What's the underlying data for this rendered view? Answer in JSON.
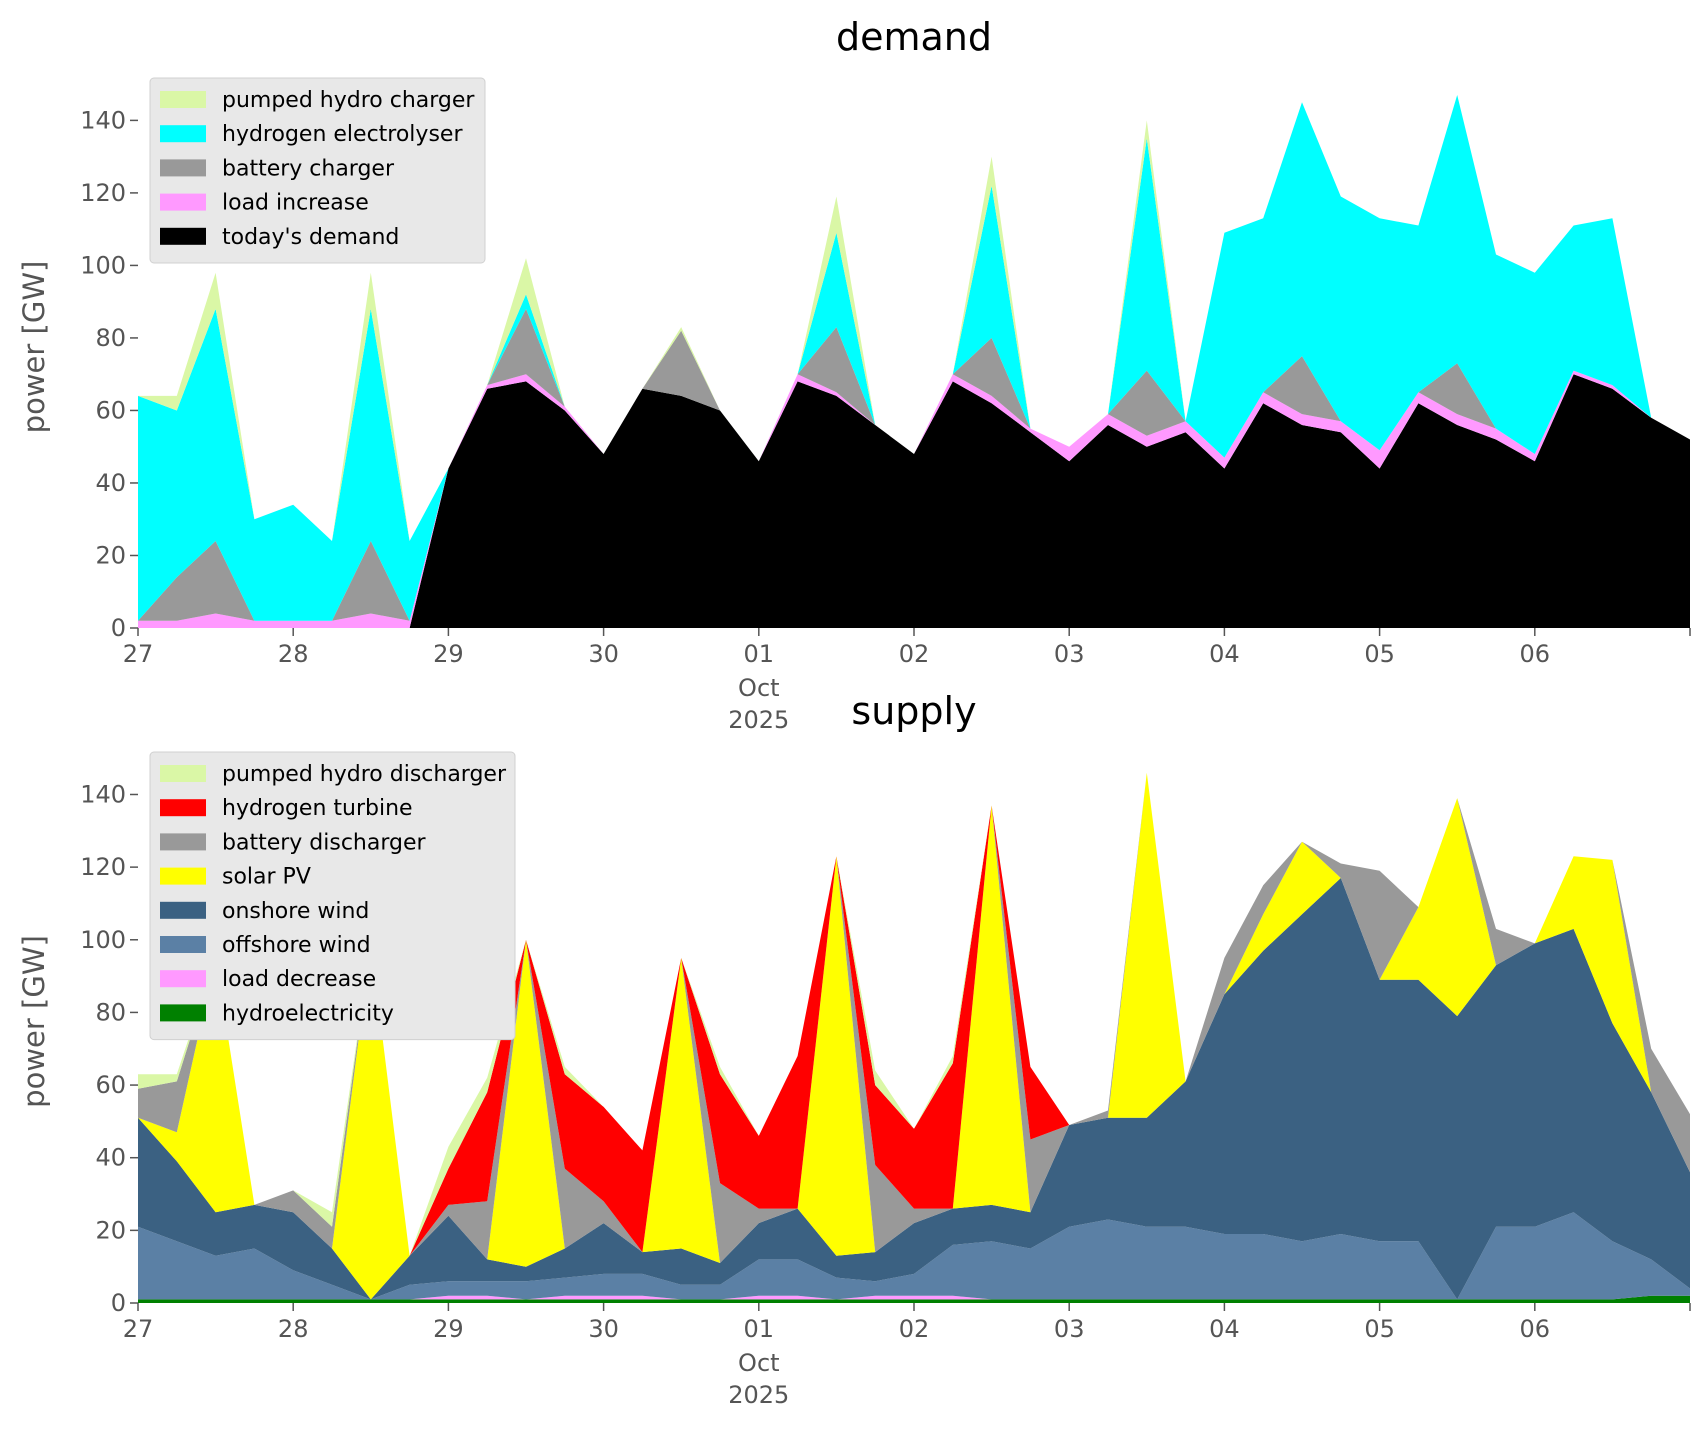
{
  "chart_data": [
    {
      "type": "area",
      "stacked": true,
      "title": "demand",
      "ylabel": "power [GW]",
      "xlabel": "",
      "ylim": [
        0,
        155
      ],
      "xlim": [
        "2025-09-27T00:00",
        "2025-10-07T00:00"
      ],
      "y_ticks": [
        0,
        20,
        40,
        60,
        80,
        100,
        120,
        140
      ],
      "x_ticks": [
        {
          "t": "2025-09-27T00:00",
          "label": "27"
        },
        {
          "t": "2025-09-28T00:00",
          "label": "28"
        },
        {
          "t": "2025-09-29T00:00",
          "label": "29"
        },
        {
          "t": "2025-09-30T00:00",
          "label": "30"
        },
        {
          "t": "2025-10-01T00:00",
          "label": "01",
          "sub": [
            "Oct",
            "2025"
          ]
        },
        {
          "t": "2025-10-02T00:00",
          "label": "02"
        },
        {
          "t": "2025-10-03T00:00",
          "label": "03"
        },
        {
          "t": "2025-10-04T00:00",
          "label": "04"
        },
        {
          "t": "2025-10-05T00:00",
          "label": "05"
        },
        {
          "t": "2025-10-06T00:00",
          "label": "06"
        }
      ],
      "grid": false,
      "legend_position": "upper left",
      "x": [
        "2025-09-27T00:00",
        "2025-09-27T06:00",
        "2025-09-27T12:00",
        "2025-09-27T18:00",
        "2025-09-28T00:00",
        "2025-09-28T06:00",
        "2025-09-28T12:00",
        "2025-09-28T18:00",
        "2025-09-29T00:00",
        "2025-09-29T06:00",
        "2025-09-29T12:00",
        "2025-09-29T18:00",
        "2025-09-30T00:00",
        "2025-09-30T06:00",
        "2025-09-30T12:00",
        "2025-09-30T18:00",
        "2025-10-01T00:00",
        "2025-10-01T06:00",
        "2025-10-01T12:00",
        "2025-10-01T18:00",
        "2025-10-02T00:00",
        "2025-10-02T06:00",
        "2025-10-02T12:00",
        "2025-10-02T18:00",
        "2025-10-03T00:00",
        "2025-10-03T06:00",
        "2025-10-03T12:00",
        "2025-10-03T18:00",
        "2025-10-04T00:00",
        "2025-10-04T06:00",
        "2025-10-04T12:00",
        "2025-10-04T18:00",
        "2025-10-05T00:00",
        "2025-10-05T06:00",
        "2025-10-05T12:00",
        "2025-10-05T18:00",
        "2025-10-06T00:00",
        "2025-10-06T06:00",
        "2025-10-06T12:00",
        "2025-10-06T18:00",
        "2025-10-07T00:00"
      ],
      "series": [
        {
          "name": "today's demand",
          "color": "#000000",
          "values": [
            0,
            0,
            0,
            0,
            0,
            0,
            0,
            0,
            44,
            66,
            68,
            60,
            48,
            66,
            64,
            60,
            46,
            68,
            64,
            56,
            48,
            68,
            62,
            54,
            46,
            56,
            50,
            54,
            44,
            62,
            56,
            54,
            44,
            62,
            56,
            52,
            46,
            70,
            66,
            58,
            52
          ]
        },
        {
          "name": "load increase",
          "color": "#ff99ff",
          "values": [
            2,
            2,
            4,
            2,
            2,
            2,
            4,
            2,
            0,
            1,
            2,
            1,
            0,
            0,
            0,
            0,
            0,
            2,
            1,
            0,
            0,
            2,
            2,
            1,
            4,
            3,
            3,
            3,
            3,
            3,
            3,
            3,
            5,
            3,
            3,
            3,
            2,
            1,
            1,
            0,
            0
          ]
        },
        {
          "name": "battery charger",
          "color": "#999999",
          "values": [
            0,
            12,
            20,
            0,
            0,
            0,
            20,
            0,
            0,
            0,
            18,
            0,
            0,
            0,
            18,
            0,
            0,
            0,
            18,
            0,
            0,
            0,
            16,
            0,
            0,
            0,
            18,
            0,
            0,
            0,
            16,
            0,
            0,
            0,
            14,
            0,
            0,
            0,
            0,
            0,
            0
          ]
        },
        {
          "name": "hydrogen electrolyser",
          "color": "#00ffff",
          "values": [
            62,
            46,
            64,
            28,
            32,
            22,
            64,
            22,
            0,
            0,
            4,
            0,
            0,
            0,
            0,
            0,
            0,
            0,
            26,
            0,
            0,
            0,
            42,
            0,
            0,
            0,
            64,
            0,
            62,
            48,
            70,
            62,
            64,
            46,
            74,
            48,
            50,
            40,
            46,
            0,
            0
          ]
        },
        {
          "name": "pumped hydro charger",
          "color": "#daf7a6",
          "values": [
            0,
            4,
            10,
            0,
            0,
            0,
            10,
            0,
            0,
            0,
            10,
            0,
            0,
            0,
            1,
            0,
            0,
            0,
            10,
            0,
            0,
            0,
            8,
            0,
            0,
            0,
            5,
            0,
            0,
            0,
            0,
            0,
            0,
            0,
            0,
            0,
            0,
            0,
            0,
            0,
            0
          ]
        }
      ]
    },
    {
      "type": "area",
      "stacked": true,
      "title": "supply",
      "ylabel": "power [GW]",
      "xlabel": "",
      "ylim": [
        0,
        155
      ],
      "xlim": [
        "2025-09-27T00:00",
        "2025-10-07T00:00"
      ],
      "y_ticks": [
        0,
        20,
        40,
        60,
        80,
        100,
        120,
        140
      ],
      "x_ticks": [
        {
          "t": "2025-09-27T00:00",
          "label": "27"
        },
        {
          "t": "2025-09-28T00:00",
          "label": "28"
        },
        {
          "t": "2025-09-29T00:00",
          "label": "29"
        },
        {
          "t": "2025-09-30T00:00",
          "label": "30"
        },
        {
          "t": "2025-10-01T00:00",
          "label": "01",
          "sub": [
            "Oct",
            "2025"
          ]
        },
        {
          "t": "2025-10-02T00:00",
          "label": "02"
        },
        {
          "t": "2025-10-03T00:00",
          "label": "03"
        },
        {
          "t": "2025-10-04T00:00",
          "label": "04"
        },
        {
          "t": "2025-10-05T00:00",
          "label": "05"
        },
        {
          "t": "2025-10-06T00:00",
          "label": "06"
        }
      ],
      "grid": false,
      "legend_position": "upper left",
      "x": [
        "2025-09-27T00:00",
        "2025-09-27T06:00",
        "2025-09-27T12:00",
        "2025-09-27T18:00",
        "2025-09-28T00:00",
        "2025-09-28T06:00",
        "2025-09-28T12:00",
        "2025-09-28T18:00",
        "2025-09-29T00:00",
        "2025-09-29T06:00",
        "2025-09-29T12:00",
        "2025-09-29T18:00",
        "2025-09-30T00:00",
        "2025-09-30T06:00",
        "2025-09-30T12:00",
        "2025-09-30T18:00",
        "2025-10-01T00:00",
        "2025-10-01T06:00",
        "2025-10-01T12:00",
        "2025-10-01T18:00",
        "2025-10-02T00:00",
        "2025-10-02T06:00",
        "2025-10-02T12:00",
        "2025-10-02T18:00",
        "2025-10-03T00:00",
        "2025-10-03T06:00",
        "2025-10-03T12:00",
        "2025-10-03T18:00",
        "2025-10-04T00:00",
        "2025-10-04T06:00",
        "2025-10-04T12:00",
        "2025-10-04T18:00",
        "2025-10-05T00:00",
        "2025-10-05T06:00",
        "2025-10-05T12:00",
        "2025-10-05T18:00",
        "2025-10-06T00:00",
        "2025-10-06T06:00",
        "2025-10-06T12:00",
        "2025-10-06T18:00",
        "2025-10-07T00:00"
      ],
      "series": [
        {
          "name": "hydroelectricity",
          "color": "#008000",
          "values": [
            1,
            1,
            1,
            1,
            1,
            1,
            1,
            1,
            1,
            1,
            1,
            1,
            1,
            1,
            1,
            1,
            1,
            1,
            1,
            1,
            1,
            1,
            1,
            1,
            1,
            1,
            1,
            1,
            1,
            1,
            1,
            1,
            1,
            1,
            1,
            1,
            1,
            1,
            1,
            2,
            2
          ]
        },
        {
          "name": "load decrease",
          "color": "#ff99ff",
          "values": [
            0,
            0,
            0,
            0,
            0,
            0,
            0,
            0,
            1,
            1,
            0,
            1,
            1,
            1,
            0,
            0,
            1,
            1,
            0,
            1,
            1,
            1,
            0,
            0,
            0,
            0,
            0,
            0,
            0,
            0,
            0,
            0,
            0,
            0,
            0,
            0,
            0,
            0,
            0,
            0,
            0
          ]
        },
        {
          "name": "offshore wind",
          "color": "#5b80a5",
          "values": [
            20,
            16,
            12,
            14,
            8,
            4,
            0,
            4,
            4,
            4,
            5,
            5,
            6,
            6,
            4,
            4,
            10,
            10,
            6,
            4,
            6,
            14,
            16,
            14,
            20,
            22,
            20,
            20,
            18,
            18,
            16,
            18,
            16,
            16,
            0,
            20,
            20,
            24,
            16,
            10,
            2
          ]
        },
        {
          "name": "onshore wind",
          "color": "#3b6182",
          "values": [
            30,
            22,
            12,
            12,
            16,
            10,
            0,
            8,
            18,
            6,
            4,
            8,
            14,
            6,
            10,
            6,
            10,
            14,
            6,
            8,
            14,
            10,
            10,
            10,
            28,
            28,
            30,
            40,
            66,
            78,
            90,
            98,
            72,
            72,
            78,
            72,
            78,
            78,
            60,
            46,
            32
          ]
        },
        {
          "name": "solar PV",
          "color": "#ffff00",
          "values": [
            0,
            8,
            70,
            0,
            0,
            0,
            98,
            0,
            0,
            0,
            90,
            0,
            0,
            0,
            80,
            0,
            0,
            0,
            110,
            0,
            0,
            0,
            110,
            0,
            0,
            0,
            95,
            0,
            0,
            10,
            20,
            0,
            0,
            20,
            60,
            0,
            0,
            20,
            45,
            0,
            0
          ]
        },
        {
          "name": "battery discharger",
          "color": "#999999",
          "values": [
            8,
            14,
            0,
            0,
            6,
            6,
            0,
            0,
            3,
            16,
            0,
            22,
            6,
            0,
            0,
            22,
            4,
            0,
            0,
            24,
            4,
            0,
            0,
            20,
            0,
            2,
            0,
            0,
            10,
            8,
            0,
            4,
            30,
            0,
            0,
            10,
            0,
            0,
            0,
            12,
            16
          ]
        },
        {
          "name": "hydrogen turbine",
          "color": "#ff0000",
          "values": [
            0,
            0,
            0,
            0,
            0,
            0,
            0,
            0,
            10,
            30,
            0,
            26,
            26,
            28,
            0,
            30,
            20,
            42,
            0,
            22,
            22,
            40,
            0,
            20,
            0,
            0,
            0,
            0,
            0,
            0,
            0,
            0,
            0,
            0,
            0,
            0,
            0,
            0,
            0,
            0,
            0
          ]
        },
        {
          "name": "pumped hydro discharger",
          "color": "#daf7a6",
          "values": [
            4,
            2,
            0,
            0,
            0,
            4,
            0,
            0,
            6,
            4,
            0,
            2,
            0,
            0,
            0,
            2,
            0,
            0,
            0,
            4,
            0,
            2,
            0,
            0,
            0,
            0,
            0,
            0,
            0,
            0,
            0,
            0,
            0,
            0,
            0,
            0,
            0,
            0,
            0,
            0,
            0
          ]
        }
      ]
    }
  ],
  "legends": [
    {
      "items": [
        {
          "label": "pumped hydro charger",
          "color": "#daf7a6"
        },
        {
          "label": "hydrogen electrolyser",
          "color": "#00ffff"
        },
        {
          "label": "battery charger",
          "color": "#999999"
        },
        {
          "label": "load increase",
          "color": "#ff99ff"
        },
        {
          "label": "today's demand",
          "color": "#000000"
        }
      ]
    },
    {
      "items": [
        {
          "label": "pumped hydro discharger",
          "color": "#daf7a6"
        },
        {
          "label": "hydrogen turbine",
          "color": "#ff0000"
        },
        {
          "label": "battery discharger",
          "color": "#999999"
        },
        {
          "label": "solar PV",
          "color": "#ffff00"
        },
        {
          "label": "onshore wind",
          "color": "#3b6182"
        },
        {
          "label": "offshore wind",
          "color": "#5b80a5"
        },
        {
          "label": "load decrease",
          "color": "#ff99ff"
        },
        {
          "label": "hydroelectricity",
          "color": "#008000"
        }
      ]
    }
  ]
}
